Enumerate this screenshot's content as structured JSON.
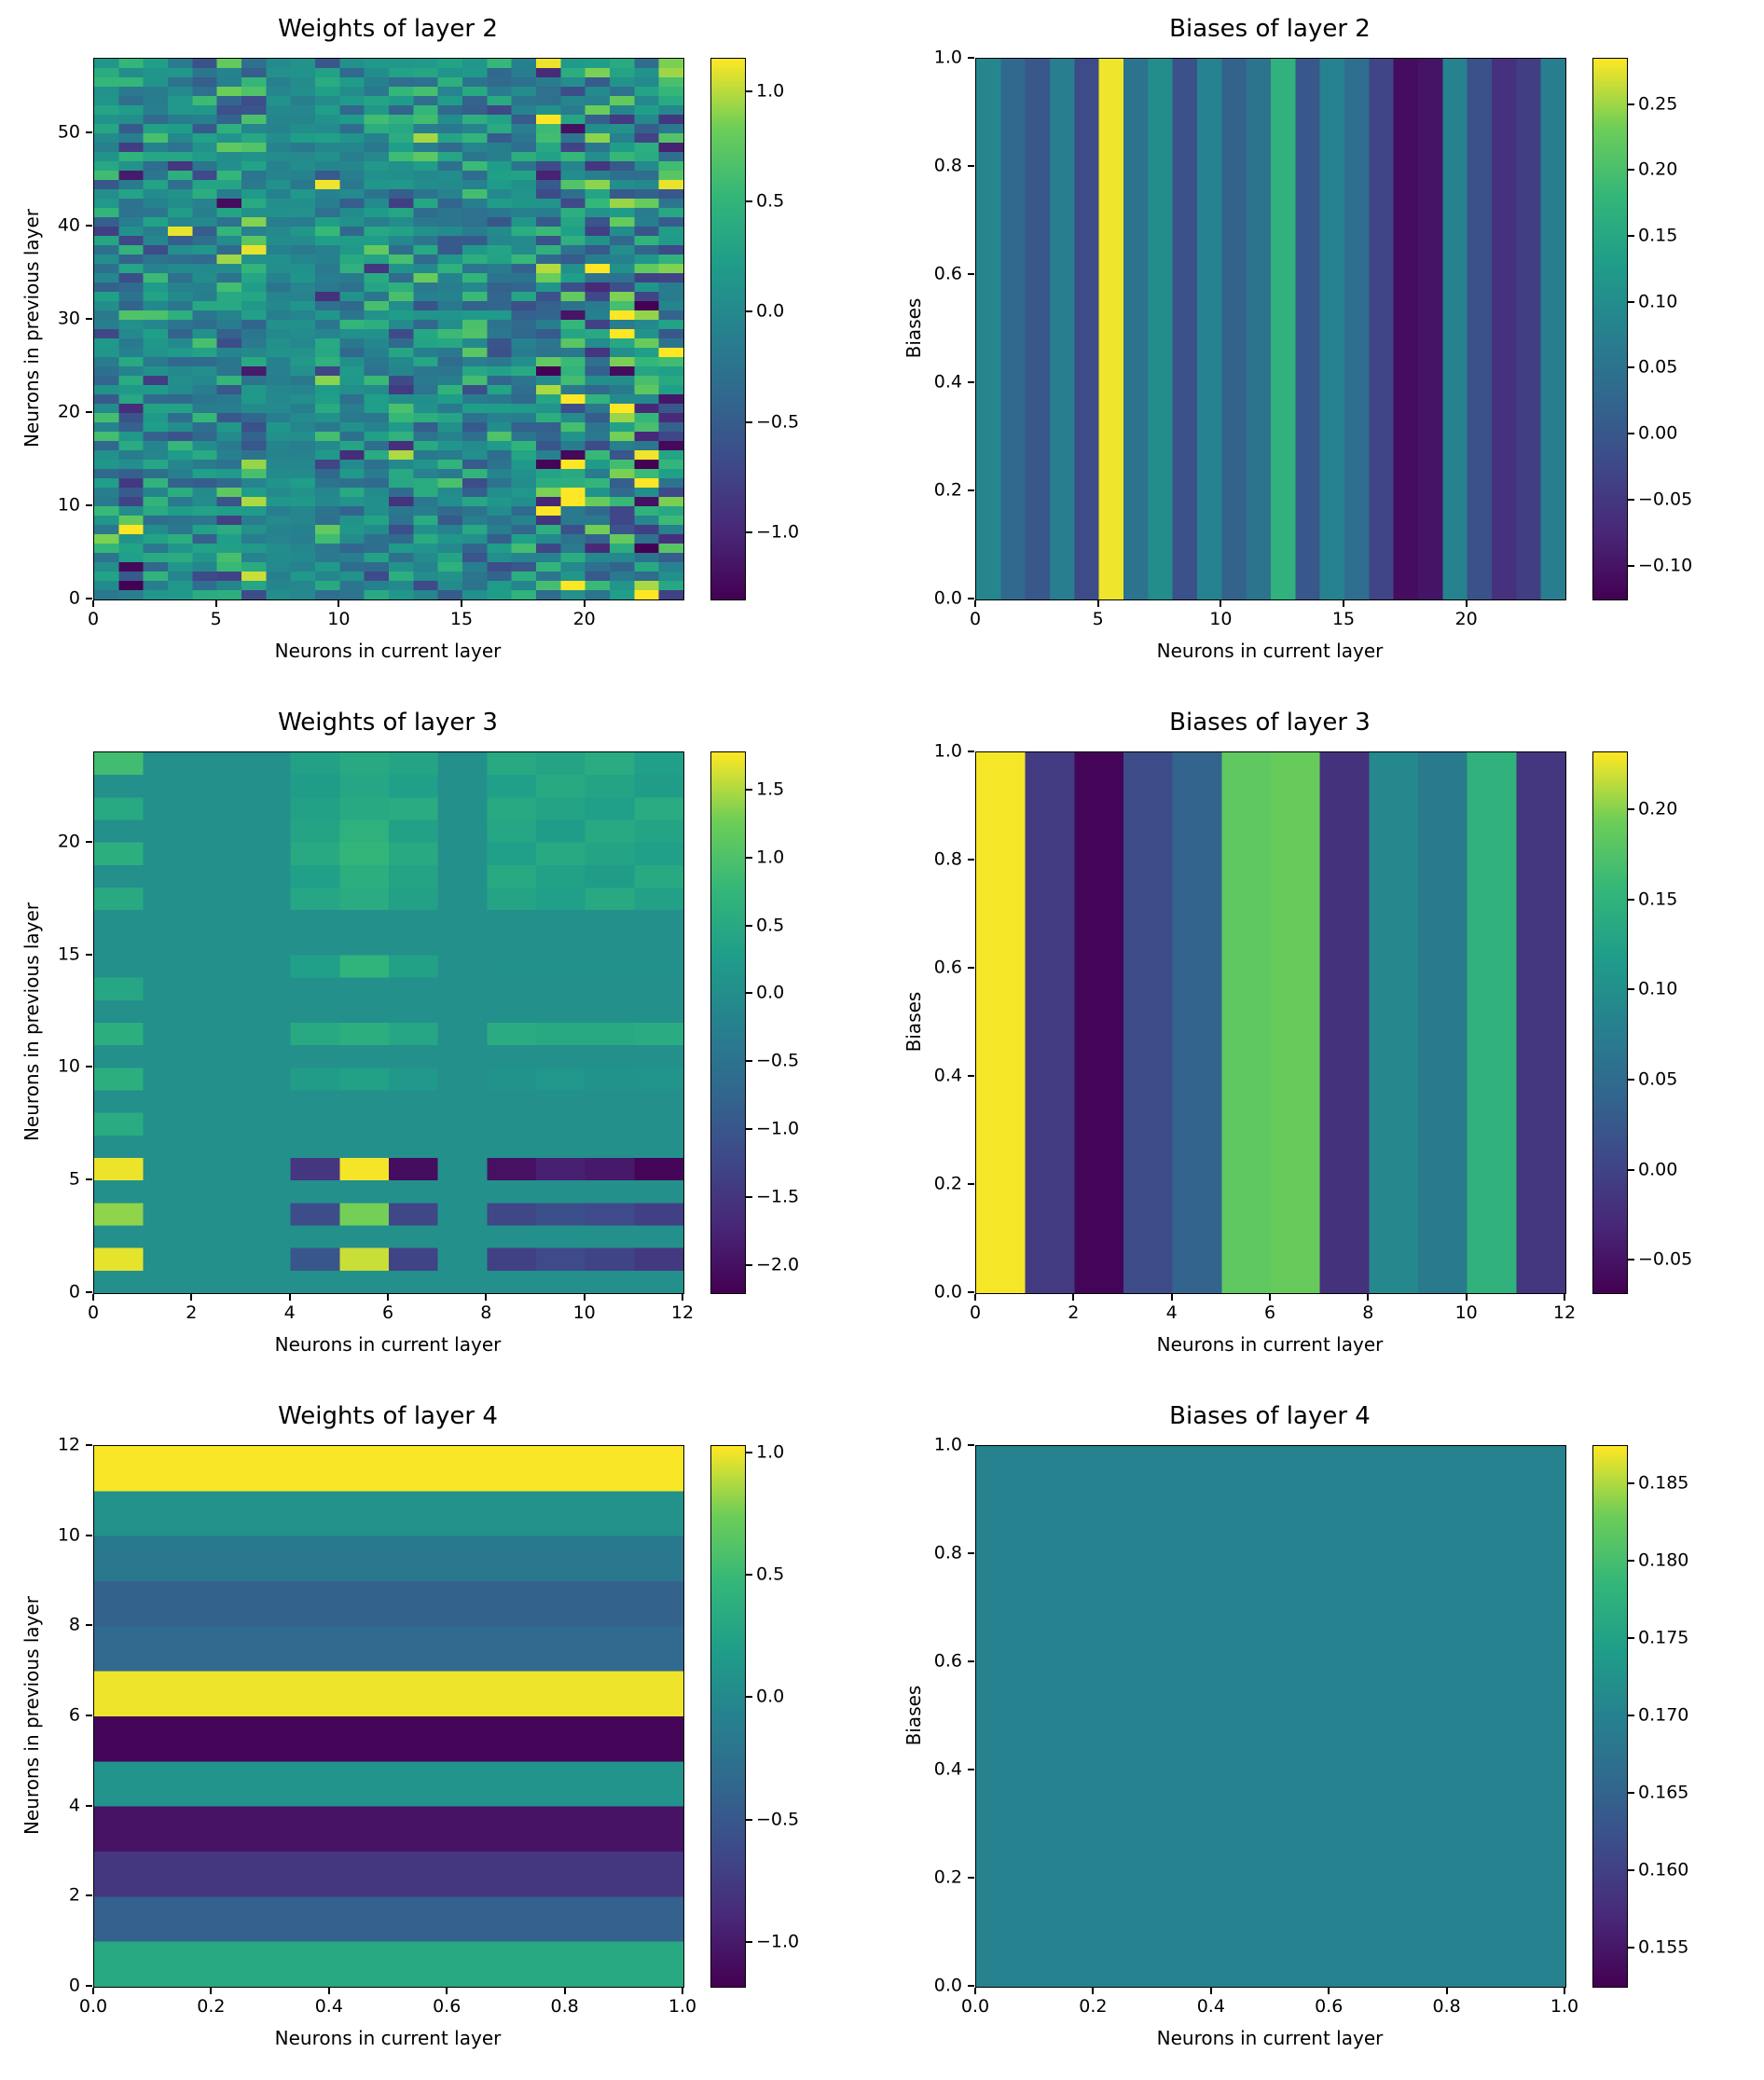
{
  "figure": {
    "background": "#ffffff",
    "text_color": "#000000",
    "colormap": "viridis",
    "viridis_stops": [
      [
        68,
        1,
        84
      ],
      [
        72,
        40,
        120
      ],
      [
        62,
        74,
        137
      ],
      [
        49,
        104,
        142
      ],
      [
        38,
        130,
        142
      ],
      [
        31,
        158,
        137
      ],
      [
        53,
        183,
        121
      ],
      [
        110,
        206,
        88
      ],
      [
        253,
        231,
        37
      ]
    ]
  },
  "chart_data": [
    {
      "type": "heatmap",
      "title": "Weights of layer 2",
      "xlabel": "Neurons in current layer",
      "ylabel": "Neurons in previous layer",
      "xlim": [
        0,
        24
      ],
      "ylim": [
        0,
        58
      ],
      "x_ticks": [
        0,
        5,
        10,
        15,
        20
      ],
      "x_tick_labels": [
        "0",
        "5",
        "10",
        "15",
        "20"
      ],
      "y_ticks": [
        0,
        10,
        20,
        30,
        40,
        50
      ],
      "y_tick_labels": [
        "0",
        "10",
        "20",
        "30",
        "40",
        "50"
      ],
      "colorbar": {
        "vmin": -1.3,
        "vmax": 1.15,
        "ticks": [
          1.0,
          0.5,
          0.0,
          -0.5,
          -1.0
        ],
        "tick_labels": [
          "1.0",
          "0.5",
          "0.0",
          "−0.5",
          "−1.0"
        ]
      },
      "heatmap": {
        "mode": "generated",
        "rows": 58,
        "cols": 24,
        "seed": 20,
        "col_scales": [
          0.35,
          0.5,
          0.3,
          0.35,
          0.3,
          0.5,
          0.45,
          0.07,
          0.12,
          0.35,
          0.3,
          0.3,
          0.45,
          0.35,
          0.3,
          0.4,
          0.3,
          0.3,
          0.6,
          0.65,
          0.5,
          0.6,
          0.65,
          0.55
        ],
        "clamp": [
          -1.3,
          1.15
        ]
      }
    },
    {
      "type": "heatmap",
      "title": "Biases of layer 2",
      "xlabel": "Neurons in current layer",
      "ylabel": "Biases",
      "xlim": [
        0,
        24
      ],
      "ylim": [
        0,
        1
      ],
      "x_ticks": [
        0,
        5,
        10,
        15,
        20
      ],
      "x_tick_labels": [
        "0",
        "5",
        "10",
        "15",
        "20"
      ],
      "y_ticks": [
        0,
        0.2,
        0.4,
        0.6,
        0.8,
        1.0
      ],
      "y_tick_labels": [
        "0.0",
        "0.2",
        "0.4",
        "0.6",
        "0.8",
        "1.0"
      ],
      "colorbar": {
        "vmin": -0.125,
        "vmax": 0.285,
        "ticks": [
          0.25,
          0.2,
          0.15,
          0.1,
          0.05,
          0.0,
          -0.05,
          -0.1
        ],
        "tick_labels": [
          "0.25",
          "0.20",
          "0.15",
          "0.10",
          "0.05",
          "0.00",
          "−0.05",
          "−0.10"
        ]
      },
      "heatmap": {
        "mode": "columns",
        "values": [
          0.09,
          0.03,
          0.0,
          0.07,
          -0.02,
          0.28,
          0.05,
          0.1,
          -0.01,
          0.08,
          0.02,
          0.05,
          0.17,
          0.0,
          0.08,
          0.04,
          -0.03,
          -0.11,
          -0.1,
          0.08,
          -0.01,
          -0.06,
          -0.04,
          0.07
        ]
      }
    },
    {
      "type": "heatmap",
      "title": "Weights of layer 3",
      "xlabel": "Neurons in current layer",
      "ylabel": "Neurons in previous layer",
      "xlim": [
        0,
        12
      ],
      "ylim": [
        0,
        24
      ],
      "x_ticks": [
        0,
        2,
        4,
        6,
        8,
        10,
        12
      ],
      "x_tick_labels": [
        "0",
        "2",
        "4",
        "6",
        "8",
        "10",
        "12"
      ],
      "y_ticks": [
        0,
        5,
        10,
        15,
        20
      ],
      "y_tick_labels": [
        "0",
        "5",
        "10",
        "15",
        "20"
      ],
      "colorbar": {
        "vmin": -2.2,
        "vmax": 1.78,
        "ticks": [
          1.5,
          1.0,
          0.5,
          0.0,
          -0.5,
          -1.0,
          -1.5,
          -2.0
        ],
        "tick_labels": [
          "1.5",
          "1.0",
          "0.5",
          "0.0",
          "−0.5",
          "−1.0",
          "−1.5",
          "−2.0"
        ]
      },
      "heatmap": {
        "mode": "matrix",
        "values": [
          [
            0.03,
            0.03,
            0.03,
            0.03,
            0.03,
            0.03,
            0.03,
            0.03,
            0.03,
            0.03,
            0.03,
            0.03
          ],
          [
            1.7,
            0.03,
            0.03,
            0.03,
            -1.0,
            1.6,
            -1.3,
            0.03,
            -1.35,
            -1.2,
            -1.3,
            -1.45
          ],
          [
            0.03,
            0.03,
            0.03,
            0.03,
            0.03,
            0.03,
            0.03,
            0.03,
            0.03,
            0.03,
            0.03,
            0.03
          ],
          [
            1.4,
            0.03,
            0.03,
            0.03,
            -1.15,
            1.3,
            -1.25,
            0.03,
            -1.25,
            -1.1,
            -1.2,
            -1.35
          ],
          [
            0.03,
            0.03,
            0.03,
            0.03,
            0.03,
            0.03,
            0.03,
            0.03,
            0.03,
            0.03,
            0.03,
            0.03
          ],
          [
            1.72,
            0.03,
            0.03,
            0.03,
            -1.5,
            1.75,
            -2.05,
            0.03,
            -2.0,
            -1.8,
            -1.9,
            -2.15
          ],
          [
            0.03,
            0.03,
            0.03,
            0.03,
            0.03,
            0.03,
            0.03,
            0.03,
            0.03,
            0.03,
            0.03,
            0.03
          ],
          [
            0.55,
            0.03,
            0.03,
            0.03,
            0.03,
            0.03,
            0.03,
            0.03,
            0.03,
            0.03,
            0.03,
            0.03
          ],
          [
            0.03,
            0.03,
            0.03,
            0.03,
            0.03,
            0.03,
            0.03,
            0.03,
            0.03,
            0.03,
            0.03,
            0.03
          ],
          [
            0.6,
            0.03,
            0.03,
            0.03,
            0.25,
            0.35,
            0.2,
            0.03,
            0.1,
            0.15,
            0.1,
            0.12
          ],
          [
            0.03,
            0.03,
            0.03,
            0.03,
            0.03,
            0.03,
            0.03,
            0.03,
            0.03,
            0.03,
            0.03,
            0.03
          ],
          [
            0.6,
            0.03,
            0.03,
            0.03,
            0.5,
            0.6,
            0.45,
            0.03,
            0.55,
            0.5,
            0.5,
            0.55
          ],
          [
            0.03,
            0.03,
            0.03,
            0.03,
            0.03,
            0.03,
            0.03,
            0.03,
            0.03,
            0.03,
            0.03,
            0.03
          ],
          [
            0.45,
            0.03,
            0.03,
            0.03,
            0.03,
            0.03,
            0.03,
            0.03,
            0.03,
            0.03,
            0.03,
            0.03
          ],
          [
            0.03,
            0.03,
            0.03,
            0.03,
            0.3,
            0.7,
            0.35,
            0.03,
            0.05,
            0.05,
            0.05,
            0.05
          ],
          [
            0.03,
            0.03,
            0.03,
            0.03,
            0.03,
            0.03,
            0.03,
            0.03,
            0.03,
            0.03,
            0.03,
            0.03
          ],
          [
            0.03,
            0.03,
            0.03,
            0.03,
            0.03,
            0.03,
            0.03,
            0.03,
            0.03,
            0.03,
            0.03,
            0.03
          ],
          [
            0.5,
            0.03,
            0.03,
            0.03,
            0.45,
            0.55,
            0.35,
            0.03,
            0.4,
            0.3,
            0.5,
            0.35
          ],
          [
            0.03,
            0.03,
            0.03,
            0.03,
            0.3,
            0.6,
            0.4,
            0.03,
            0.5,
            0.35,
            0.25,
            0.5
          ],
          [
            0.6,
            0.03,
            0.03,
            0.03,
            0.5,
            0.75,
            0.5,
            0.03,
            0.3,
            0.5,
            0.4,
            0.3
          ],
          [
            0.03,
            0.03,
            0.03,
            0.03,
            0.4,
            0.65,
            0.35,
            0.03,
            0.45,
            0.25,
            0.5,
            0.4
          ],
          [
            0.5,
            0.03,
            0.03,
            0.03,
            0.35,
            0.5,
            0.55,
            0.03,
            0.5,
            0.4,
            0.3,
            0.55
          ],
          [
            0.03,
            0.03,
            0.03,
            0.03,
            0.25,
            0.45,
            0.3,
            0.03,
            0.3,
            0.5,
            0.4,
            0.25
          ],
          [
            0.9,
            0.03,
            0.03,
            0.03,
            0.35,
            0.5,
            0.4,
            0.03,
            0.5,
            0.4,
            0.55,
            0.3
          ]
        ]
      }
    },
    {
      "type": "heatmap",
      "title": "Biases of layer 3",
      "xlabel": "Neurons in current layer",
      "ylabel": "Biases",
      "xlim": [
        0,
        12
      ],
      "ylim": [
        0,
        1
      ],
      "x_ticks": [
        0,
        2,
        4,
        6,
        8,
        10,
        12
      ],
      "x_tick_labels": [
        "0",
        "2",
        "4",
        "6",
        "8",
        "10",
        "12"
      ],
      "y_ticks": [
        0,
        0.2,
        0.4,
        0.6,
        0.8,
        1.0
      ],
      "y_tick_labels": [
        "0.0",
        "0.2",
        "0.4",
        "0.6",
        "0.8",
        "1.0"
      ],
      "colorbar": {
        "vmin": -0.068,
        "vmax": 0.232,
        "ticks": [
          0.2,
          0.15,
          0.1,
          0.05,
          0.0,
          -0.05
        ],
        "tick_labels": [
          "0.20",
          "0.15",
          "0.10",
          "0.05",
          "0.00",
          "−0.05"
        ]
      },
      "heatmap": {
        "mode": "columns",
        "values": [
          0.23,
          -0.01,
          -0.065,
          0.01,
          0.04,
          0.185,
          0.19,
          -0.02,
          0.09,
          0.07,
          0.15,
          -0.015
        ]
      }
    },
    {
      "type": "heatmap",
      "title": "Weights of layer 4",
      "xlabel": "Neurons in current layer",
      "ylabel": "Neurons in previous layer",
      "xlim": [
        0,
        1
      ],
      "ylim": [
        0,
        12
      ],
      "x_ticks": [
        0,
        0.2,
        0.4,
        0.6,
        0.8,
        1.0
      ],
      "x_tick_labels": [
        "0.0",
        "0.2",
        "0.4",
        "0.6",
        "0.8",
        "1.0"
      ],
      "y_ticks": [
        0,
        2,
        4,
        6,
        8,
        10,
        12
      ],
      "y_tick_labels": [
        "0",
        "2",
        "4",
        "6",
        "8",
        "10",
        "12"
      ],
      "colorbar": {
        "vmin": -1.18,
        "vmax": 1.03,
        "ticks": [
          1.0,
          0.5,
          0.0,
          -0.5,
          -1.0
        ],
        "tick_labels": [
          "1.0",
          "0.5",
          "0.0",
          "−0.5",
          "−1.0"
        ]
      },
      "heatmap": {
        "mode": "rows",
        "values": [
          0.32,
          -0.42,
          -0.78,
          -1.05,
          0.1,
          -1.15,
          1.0,
          -0.33,
          -0.4,
          -0.18,
          0.08,
          1.02
        ]
      }
    },
    {
      "type": "heatmap",
      "title": "Biases of layer 4",
      "xlabel": "Neurons in current layer",
      "ylabel": "Biases",
      "xlim": [
        0,
        1
      ],
      "ylim": [
        0,
        1
      ],
      "x_ticks": [
        0,
        0.2,
        0.4,
        0.6,
        0.8,
        1.0
      ],
      "x_tick_labels": [
        "0.0",
        "0.2",
        "0.4",
        "0.6",
        "0.8",
        "1.0"
      ],
      "y_ticks": [
        0,
        0.2,
        0.4,
        0.6,
        0.8,
        1.0
      ],
      "y_tick_labels": [
        "0.0",
        "0.2",
        "0.4",
        "0.6",
        "0.8",
        "1.0"
      ],
      "colorbar": {
        "vmin": 0.1525,
        "vmax": 0.1875,
        "ticks": [
          0.185,
          0.18,
          0.175,
          0.17,
          0.165,
          0.16,
          0.155
        ],
        "tick_labels": [
          "0.185",
          "0.180",
          "0.175",
          "0.170",
          "0.165",
          "0.160",
          "0.155"
        ]
      },
      "heatmap": {
        "mode": "uniform",
        "value": 0.17
      }
    }
  ]
}
